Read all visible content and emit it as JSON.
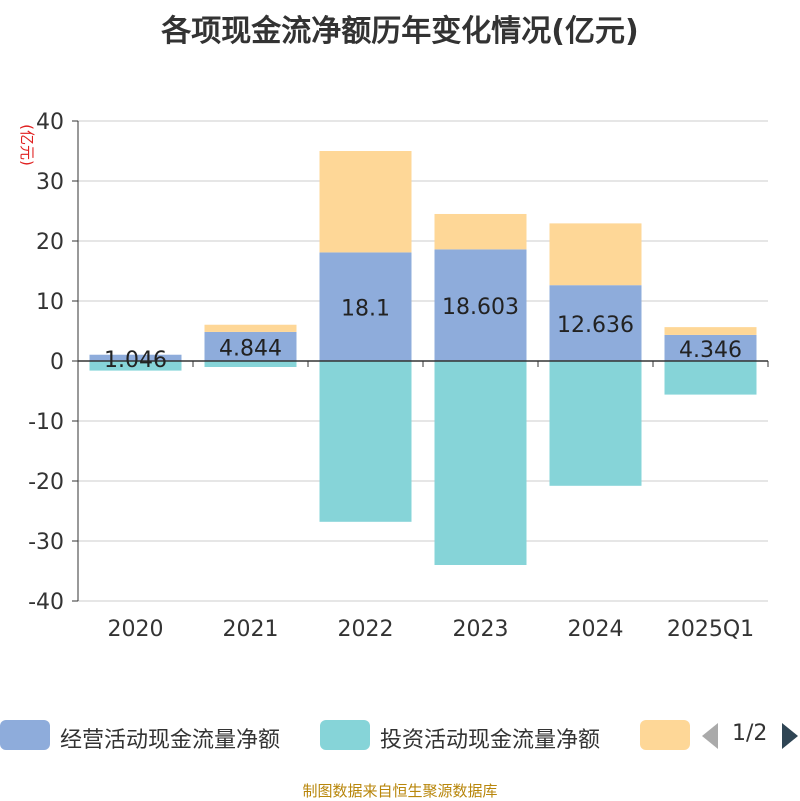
{
  "chart_data": {
    "type": "bar",
    "title": "各项现金流净额历年变化情况(亿元)",
    "ylabel": "(亿元)",
    "ylim": [
      -40,
      40
    ],
    "yticks": [
      40,
      30,
      20,
      10,
      0,
      -10,
      -20,
      -30,
      -40
    ],
    "categories": [
      "2020",
      "2021",
      "2022",
      "2023",
      "2024",
      "2025Q1"
    ],
    "series": [
      {
        "name": "经营活动现金流量净额",
        "color": "#8eacdb",
        "values": [
          1.046,
          4.844,
          18.1,
          18.603,
          12.636,
          4.346
        ],
        "labels": [
          "1.046",
          "4.844",
          "18.1",
          "18.603",
          "12.636",
          "4.346"
        ]
      },
      {
        "name": "投资活动现金流量净额",
        "color": "#86d4d8",
        "values": [
          -1.6,
          -1.0,
          -26.8,
          -34.0,
          -20.8,
          -5.6
        ]
      },
      {
        "name": "",
        "color": "#fed797",
        "values": [
          0.0,
          1.2,
          16.9,
          5.9,
          10.3,
          1.3
        ]
      }
    ]
  },
  "legend": {
    "pager": "1/2"
  },
  "source": "制图数据来自恒生聚源数据库"
}
